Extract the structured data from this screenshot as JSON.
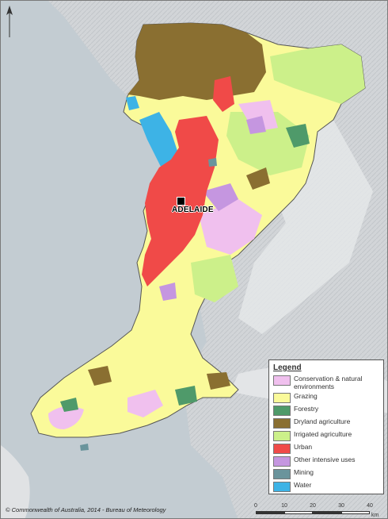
{
  "map": {
    "city_label": "ADELAIDE",
    "copyright": "© Commonwealth of Australia, 2014 - Bureau of Meteorology"
  },
  "colors": {
    "sea": "#c3ccd2",
    "land_background": "#d8dcdf",
    "conservation": "#f0c0ee",
    "grazing": "#fafa9a",
    "forestry": "#4f9a6a",
    "dryland": "#8a6f31",
    "irrigated": "#ccf08a",
    "urban": "#f04a48",
    "other_intensive": "#c596e0",
    "mining": "#6a949c",
    "water": "#3db3e6"
  },
  "legend": {
    "title": "Legend",
    "items": [
      {
        "label": "Conservation & natural environments",
        "color": "#f0c0ee"
      },
      {
        "label": "Grazing",
        "color": "#fafa9a"
      },
      {
        "label": "Forestry",
        "color": "#4f9a6a"
      },
      {
        "label": "Dryland agriculture",
        "color": "#8a6f31"
      },
      {
        "label": "Irrigated agriculture",
        "color": "#ccf08a"
      },
      {
        "label": "Urban",
        "color": "#f04a48"
      },
      {
        "label": "Other intensive uses",
        "color": "#c596e0"
      },
      {
        "label": "Mining",
        "color": "#6a949c"
      },
      {
        "label": "Water",
        "color": "#3db3e6"
      }
    ]
  },
  "scale_bar": {
    "ticks": [
      "0",
      "10",
      "20",
      "30",
      "40"
    ],
    "unit": "km"
  }
}
